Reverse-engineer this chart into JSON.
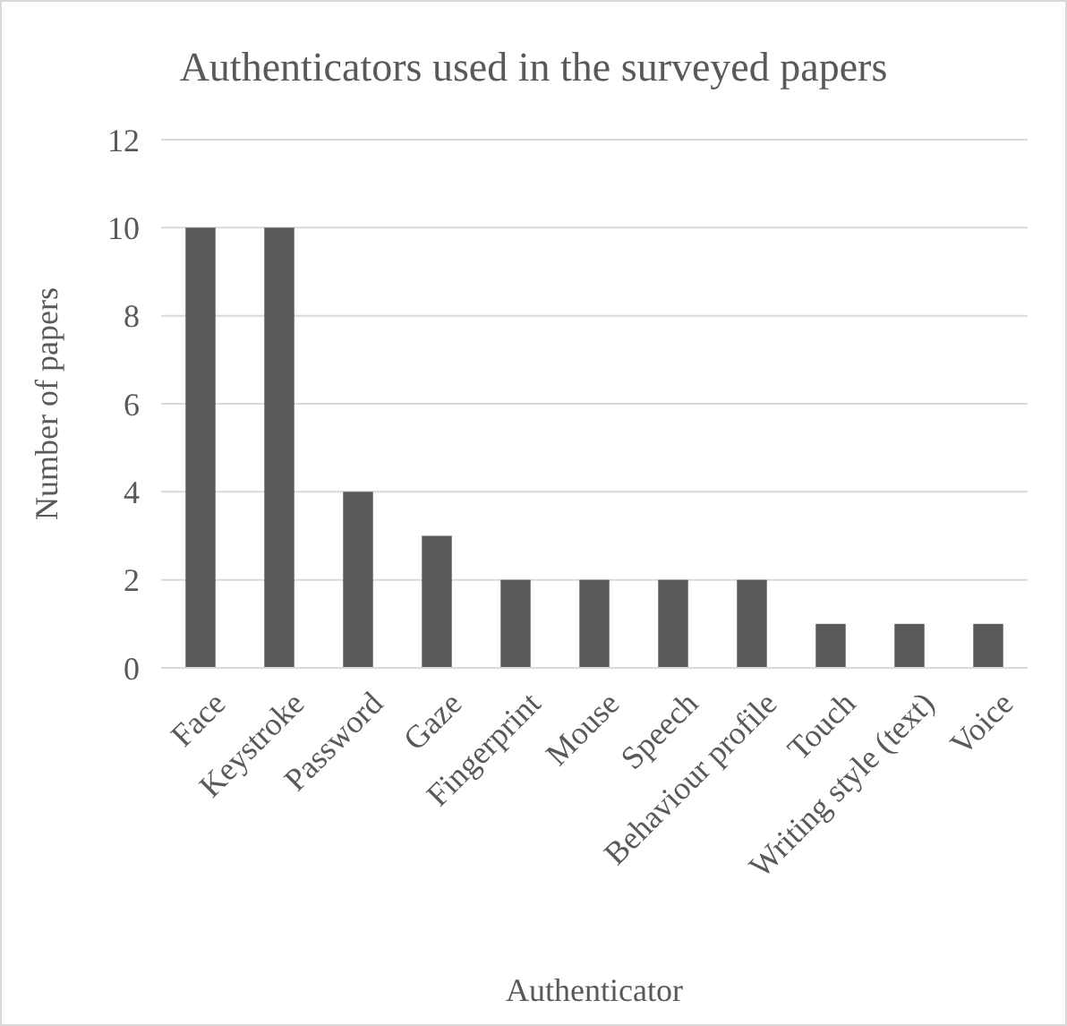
{
  "chart_data": {
    "type": "bar",
    "title": "Authenticators used in the surveyed papers",
    "xlabel": "Authenticator",
    "ylabel": "Number of papers",
    "categories": [
      "Face",
      "Keystroke",
      "Password",
      "Gaze",
      "Fingerprint",
      "Mouse",
      "Speech",
      "Behaviour profile",
      "Touch",
      "Writing style (text)",
      "Voice"
    ],
    "values": [
      10,
      10,
      4,
      3,
      2,
      2,
      2,
      2,
      1,
      1,
      1
    ],
    "color": "#595959",
    "ylim": [
      0,
      12
    ],
    "yticks": [
      0,
      2,
      4,
      6,
      8,
      10,
      12
    ],
    "grid": "y"
  }
}
